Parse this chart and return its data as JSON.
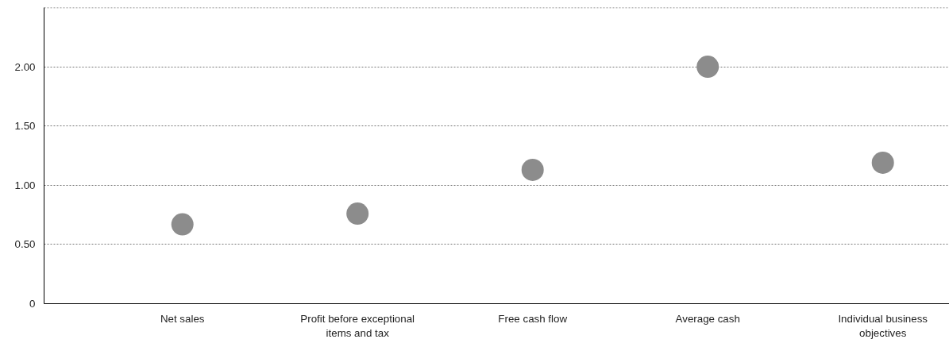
{
  "chart_data": {
    "type": "scatter",
    "categories": [
      "Net sales",
      "Profit before exceptional items and tax",
      "Free cash flow",
      "Average cash",
      "Individual business objectives"
    ],
    "series": [
      {
        "color": "#8c8c8c",
        "values": [
          0.67,
          0.76,
          1.13,
          2.0,
          1.19
        ]
      }
    ],
    "ylim": [
      0,
      2.5
    ],
    "yticks": [
      0,
      {
        "value": 0.5,
        "label": "0.50"
      },
      {
        "value": 1,
        "label": "1.00"
      },
      {
        "value": 1.5,
        "label": "1.50"
      },
      {
        "value": 2,
        "label": "2.00"
      },
      {
        "value": 2.5,
        "label": null
      }
    ],
    "grid": "y",
    "marker": "circle"
  }
}
